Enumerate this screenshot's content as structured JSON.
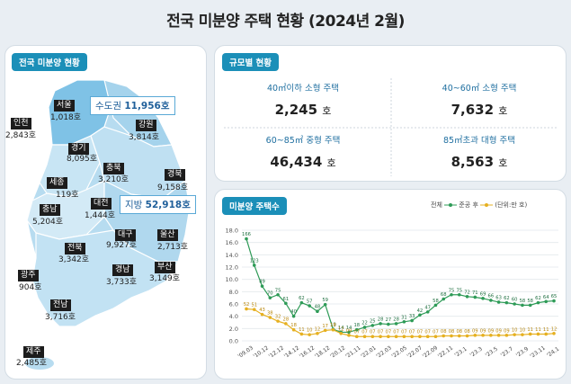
{
  "title": "전국 미분양 주택 현황 (2024년 2월)",
  "map_panel": {
    "title": "전국 미분양 현황",
    "regions": [
      {
        "key": "seoul",
        "label": "서울",
        "value": "1,018호"
      },
      {
        "key": "incheon",
        "label": "인천",
        "value": "2,843호"
      },
      {
        "key": "gangwon",
        "label": "강원",
        "value": "3,814호"
      },
      {
        "key": "gyeonggi",
        "label": "경기",
        "value": "8,095호"
      },
      {
        "key": "chungbuk",
        "label": "충북",
        "value": "3,210호"
      },
      {
        "key": "gyeongbuk",
        "label": "경북",
        "value": "9,158호"
      },
      {
        "key": "sejong",
        "label": "세종",
        "value": "119호"
      },
      {
        "key": "daejeon",
        "label": "대전",
        "value": "1,444호"
      },
      {
        "key": "chungnam",
        "label": "충남",
        "value": "5,204호"
      },
      {
        "key": "daegu",
        "label": "대구",
        "value": "9,927호"
      },
      {
        "key": "ulsan",
        "label": "울산",
        "value": "2,713호"
      },
      {
        "key": "jeonbuk",
        "label": "전북",
        "value": "3,342호"
      },
      {
        "key": "gyeongnam",
        "label": "경남",
        "value": "3,733호"
      },
      {
        "key": "busan",
        "label": "부산",
        "value": "3,149호"
      },
      {
        "key": "gwangju",
        "label": "광주",
        "value": "904호"
      },
      {
        "key": "jeonnam",
        "label": "전남",
        "value": "3,716호"
      },
      {
        "key": "jeju",
        "label": "제주",
        "value": "2,485호"
      }
    ],
    "capital": {
      "label": "수도권",
      "value": "11,956호"
    },
    "local": {
      "label": "지방",
      "value": "52,918호"
    }
  },
  "size_panel": {
    "title": "규모별 현황",
    "cells": [
      {
        "header": "40㎡이하 소형 주택",
        "value": "2,245",
        "unit": "호"
      },
      {
        "header": "40~60㎡ 소형 주택",
        "value": "7,632",
        "unit": "호"
      },
      {
        "header": "60~85㎡ 중형 주택",
        "value": "46,434",
        "unit": "호"
      },
      {
        "header": "85㎡초과 대형 주택",
        "value": "8,563",
        "unit": "호"
      }
    ]
  },
  "chart_panel": {
    "title": "미분양 주택수",
    "legend_total": "전체",
    "legend_completed": "준공 후",
    "unit": "(단위:만 호)",
    "colors": {
      "total": "#2e9b57",
      "completed": "#e6b020"
    }
  },
  "chart_data": {
    "type": "line",
    "ylim": [
      0,
      18
    ],
    "yticks": [
      "0.0",
      "2.0",
      "4.0",
      "6.0",
      "8.0",
      "10.0",
      "12.0",
      "14.0",
      "16.0",
      "18.0"
    ],
    "xticks": [
      "'09.03",
      "'10.12",
      "'12.12",
      "'14.12",
      "'16.12",
      "'18.12",
      "'20.12",
      "'21.11",
      "'22.01",
      "'22.03",
      "'22.05",
      "'22.07",
      "'22.09",
      "'22.11",
      "'23.1",
      "'23.3",
      "'23.5",
      "'23.7",
      "'23.9",
      "'23.11",
      "'24.1"
    ],
    "series": [
      {
        "name": "전체",
        "values": [
          16.6,
          12.3,
          8.9,
          7.0,
          7.5,
          6.1,
          4.0,
          6.2,
          5.7,
          4.8,
          5.9,
          1.9,
          1.4,
          1.4,
          1.8,
          2.2,
          2.5,
          2.8,
          2.7,
          2.8,
          3.1,
          3.3,
          4.2,
          4.7,
          5.8,
          6.8,
          7.5,
          7.5,
          7.2,
          7.1,
          6.9,
          6.6,
          6.3,
          6.2,
          6.0,
          5.8,
          5.8,
          6.2,
          6.4,
          6.5
        ],
        "labels": [
          "166",
          "123",
          "89",
          "70",
          "75",
          "61",
          "40",
          "62",
          "57",
          "48",
          "59",
          "19",
          "14",
          "14",
          "18",
          "22",
          "25",
          "28",
          "27",
          "28",
          "31",
          "33",
          "42",
          "47",
          "58",
          "68",
          "75",
          "75",
          "72",
          "71",
          "69",
          "66",
          "63",
          "62",
          "60",
          "58",
          "58",
          "62",
          "64",
          "65"
        ]
      },
      {
        "name": "준공 후",
        "values": [
          5.2,
          5.1,
          4.3,
          3.8,
          3.2,
          2.8,
          1.8,
          1.1,
          1.0,
          1.2,
          1.7,
          1.8,
          1.2,
          0.9,
          0.7,
          0.7,
          0.7,
          0.7,
          0.7,
          0.7,
          0.7,
          0.7,
          0.7,
          0.7,
          0.7,
          0.8,
          0.8,
          0.8,
          0.8,
          0.9,
          0.9,
          0.9,
          0.9,
          0.9,
          1.0,
          1.0,
          1.1,
          1.1,
          1.1,
          1.2
        ],
        "labels": [
          "52",
          "51",
          "43",
          "38",
          "32",
          "28",
          "18",
          "11",
          "10",
          "12",
          "17",
          "18",
          "12",
          "09",
          "07",
          "07",
          "07",
          "07",
          "07",
          "07",
          "07",
          "07",
          "07",
          "07",
          "07",
          "08",
          "08",
          "08",
          "08",
          "09",
          "09",
          "09",
          "09",
          "09",
          "10",
          "10",
          "11",
          "11",
          "11",
          "12"
        ]
      }
    ]
  }
}
